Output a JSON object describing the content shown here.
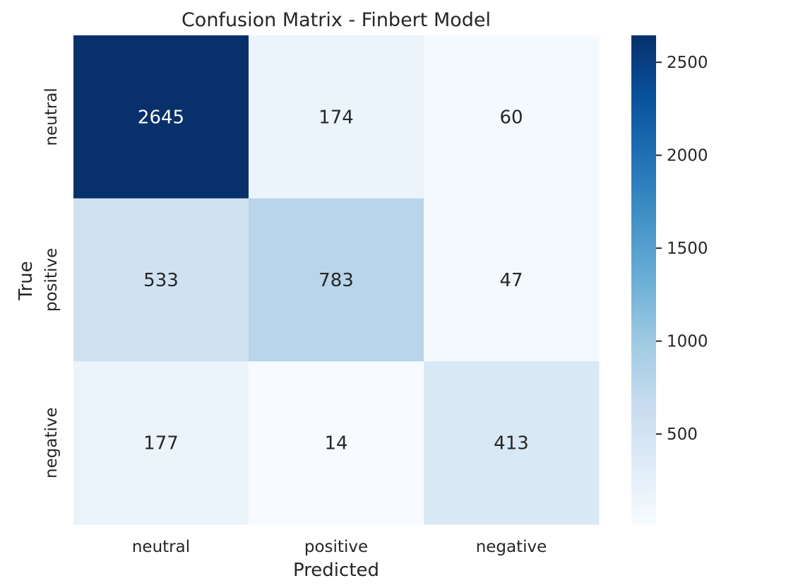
{
  "chart_data": {
    "type": "heatmap",
    "title": "Confusion Matrix - Finbert Model",
    "xlabel": "Predicted",
    "ylabel": "True",
    "x_categories": [
      "neutral",
      "positive",
      "negative"
    ],
    "y_categories": [
      "neutral",
      "positive",
      "negative"
    ],
    "values": [
      [
        2645,
        174,
        60
      ],
      [
        533,
        783,
        47
      ],
      [
        177,
        14,
        413
      ]
    ],
    "colormap": "Blues",
    "colors": {
      "low": "#f7fbff",
      "high": "#08306b"
    },
    "colorbar": {
      "range": [
        14,
        2645
      ],
      "ticks": [
        500,
        1000,
        1500,
        2000,
        2500
      ]
    },
    "grid": false
  }
}
